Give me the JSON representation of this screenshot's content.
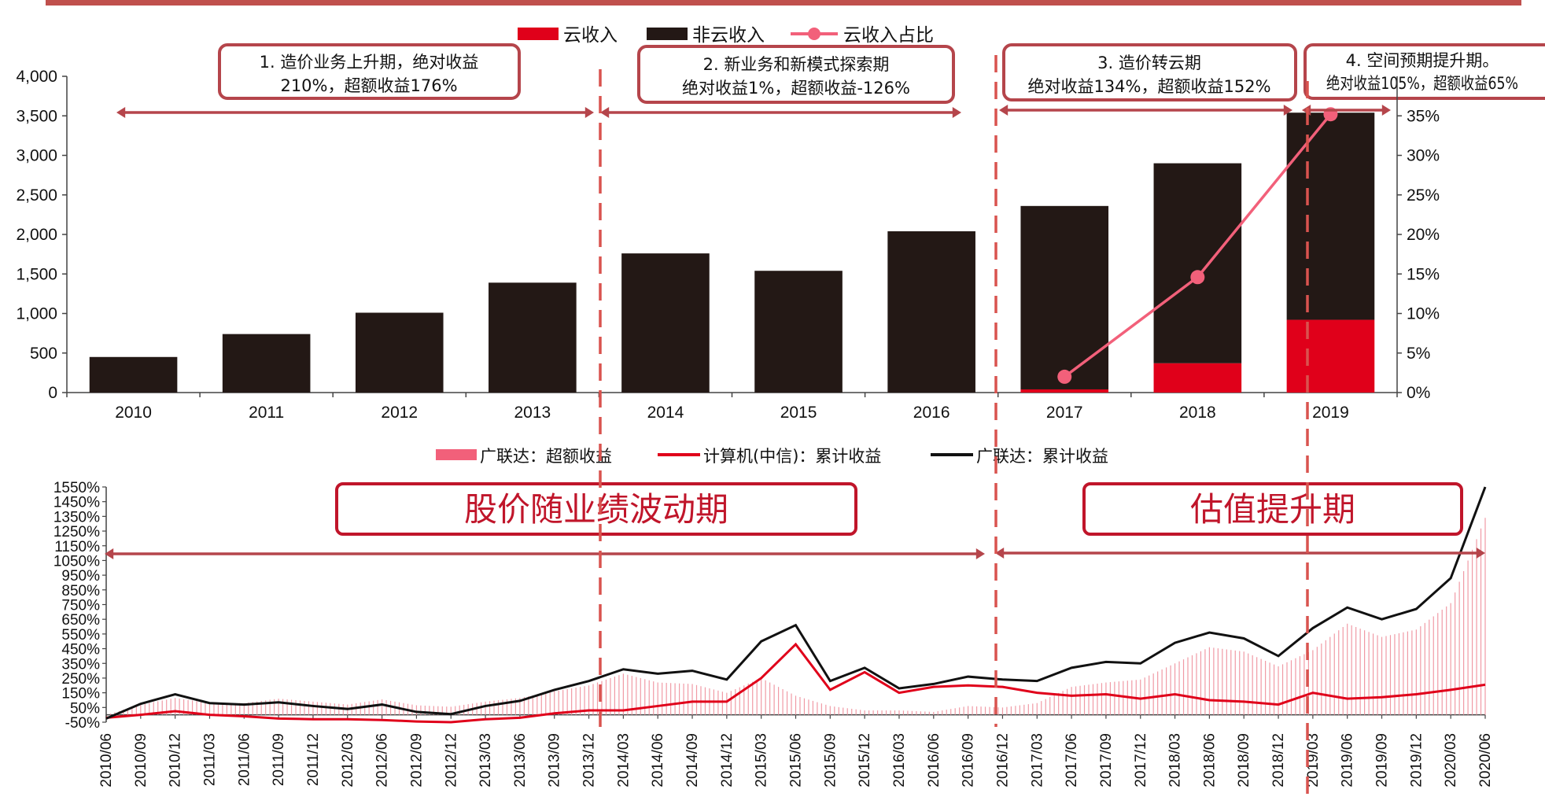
{
  "colors": {
    "cloud": "#e0001a",
    "noncloud": "#231815",
    "ratio": "#f2607a",
    "excess": "#f09aa5",
    "computer": "#e0001a",
    "glodon": "#111111",
    "accent_border": "#b5454b",
    "header_bar": "#c0504d"
  },
  "top_legend": {
    "cloud": "云收入",
    "noncloud": "非云收入",
    "ratio": "云收入占比"
  },
  "top_phases": [
    {
      "line1": "1. 造价业务上升期，绝对收益",
      "line2": "210%，超额收益176%"
    },
    {
      "line1": "2. 新业务和新模式探索期",
      "line2": "绝对收益1%，超额收益-126%"
    },
    {
      "line1": "3. 造价转云期",
      "line2": "绝对收益134%，超额收益152%"
    },
    {
      "line1": "4. 空间预期提升期。",
      "line2": "绝对收益105%，超额收益65%"
    }
  ],
  "bottom_legend": {
    "excess": "广联达：超额收益",
    "computer": "计算机(中信)：累计收益",
    "glodon": "广联达：累计收益"
  },
  "bottom_phases": {
    "phase1": "股价随业绩波动期",
    "phase2": "估值提升期"
  },
  "chart_data": [
    {
      "type": "bar",
      "stacked": true,
      "categories": [
        "2010",
        "2011",
        "2012",
        "2013",
        "2014",
        "2015",
        "2016",
        "2017",
        "2018",
        "2019"
      ],
      "series": [
        {
          "name": "云收入",
          "values": [
            0,
            0,
            0,
            0,
            0,
            0,
            0,
            40,
            370,
            920
          ]
        },
        {
          "name": "非云收入",
          "values": [
            450,
            740,
            1010,
            1390,
            1760,
            1540,
            2040,
            2320,
            2530,
            2620
          ]
        },
        {
          "name": "云收入占比",
          "axis": "right",
          "type": "line",
          "x": [
            "2017",
            "2018",
            "2019"
          ],
          "values": [
            2.0,
            14.6,
            35.2
          ]
        }
      ],
      "y_left": {
        "lim": [
          0,
          4000
        ],
        "ticks": [
          "0",
          "500",
          "1,000",
          "1,500",
          "2,000",
          "2,500",
          "3,000",
          "3,500",
          "4,000"
        ]
      },
      "y_right": {
        "lim": [
          0,
          40
        ],
        "ticks": [
          "0%",
          "5%",
          "10%",
          "15%",
          "20%",
          "25%",
          "30%",
          "35%"
        ]
      }
    },
    {
      "type": "line",
      "dates": [
        "2010/06",
        "2010/09",
        "2010/12",
        "2011/03",
        "2011/06",
        "2011/09",
        "2011/12",
        "2012/03",
        "2012/06",
        "2012/09",
        "2012/12",
        "2013/03",
        "2013/06",
        "2013/09",
        "2013/12",
        "2014/03",
        "2014/06",
        "2014/09",
        "2014/12",
        "2015/03",
        "2015/06",
        "2015/09",
        "2015/12",
        "2016/03",
        "2016/06",
        "2016/09",
        "2016/12",
        "2017/03",
        "2017/06",
        "2017/09",
        "2017/12",
        "2018/03",
        "2018/06",
        "2018/09",
        "2018/12",
        "2019/03",
        "2019/06",
        "2019/09",
        "2019/12",
        "2020/03",
        "2020/06"
      ],
      "series": [
        {
          "name": "广联达：累计收益",
          "values": [
            -25,
            75,
            140,
            80,
            70,
            85,
            60,
            40,
            70,
            20,
            5,
            60,
            95,
            170,
            230,
            310,
            280,
            300,
            240,
            500,
            610,
            230,
            320,
            180,
            210,
            260,
            240,
            230,
            320,
            360,
            350,
            490,
            560,
            520,
            400,
            590,
            730,
            650,
            720,
            930,
            1550
          ]
        },
        {
          "name": "计算机(中信)：累计收益",
          "values": [
            -20,
            0,
            25,
            0,
            -10,
            -25,
            -30,
            -30,
            -35,
            -45,
            -50,
            -30,
            -20,
            10,
            30,
            30,
            60,
            90,
            90,
            250,
            480,
            170,
            290,
            150,
            190,
            200,
            190,
            150,
            130,
            140,
            110,
            140,
            100,
            90,
            70,
            150,
            110,
            120,
            140,
            170,
            205
          ]
        },
        {
          "name": "广联达：超额收益",
          "type": "bar",
          "values": [
            0,
            70,
            115,
            80,
            80,
            110,
            90,
            70,
            105,
            65,
            55,
            90,
            115,
            160,
            200,
            280,
            220,
            210,
            150,
            250,
            130,
            60,
            30,
            30,
            20,
            60,
            50,
            80,
            190,
            220,
            240,
            350,
            460,
            430,
            330,
            440,
            620,
            530,
            580,
            760,
            1340
          ]
        }
      ],
      "ylim": [
        -50,
        1550
      ],
      "yticks": [
        "-50%",
        "50%",
        "150%",
        "250%",
        "350%",
        "450%",
        "550%",
        "650%",
        "750%",
        "850%",
        "950%",
        "1050%",
        "1150%",
        "1250%",
        "1350%",
        "1450%",
        "1550%"
      ]
    }
  ]
}
